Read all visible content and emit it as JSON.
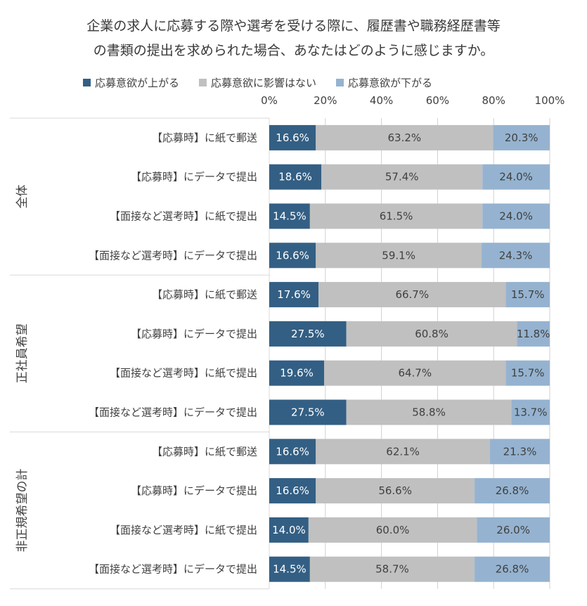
{
  "chart_data": {
    "type": "bar",
    "orientation": "horizontal",
    "stacked": true,
    "title_lines": [
      "企業の求人に応募する際や選考を受ける際に、履歴書や職務経歴書等",
      "の書類の提出を求められた場合、あなたはどのように感じますか。"
    ],
    "xlim": [
      0,
      100
    ],
    "x_ticks": [
      "0%",
      "20%",
      "40%",
      "60%",
      "80%",
      "100%"
    ],
    "legend_position": "top",
    "colors": {
      "up": "#335f84",
      "neutral": "#c0c0c0",
      "down": "#95b3d0",
      "grid": "#d0d0d0",
      "border": "#d9d9d9"
    },
    "series": [
      {
        "key": "up",
        "name": "応募意欲が上がる"
      },
      {
        "key": "neutral",
        "name": "応募意欲に影響はない"
      },
      {
        "key": "down",
        "name": "応募意欲が下がる"
      }
    ],
    "groups": [
      {
        "label": "全体",
        "rows": [
          {
            "label": "【応募時】に紙で郵送",
            "values": [
              16.6,
              63.2,
              20.3
            ],
            "labels": [
              "16.6%",
              "63.2%",
              "20.3%"
            ]
          },
          {
            "label": "【応募時】にデータで提出",
            "values": [
              18.6,
              57.4,
              24.0
            ],
            "labels": [
              "18.6%",
              "57.4%",
              "24.0%"
            ]
          },
          {
            "label": "【面接など選考時】に紙で提出",
            "values": [
              14.5,
              61.5,
              24.0
            ],
            "labels": [
              "14.5%",
              "61.5%",
              "24.0%"
            ]
          },
          {
            "label": "【面接など選考時】にデータで提出",
            "values": [
              16.6,
              59.1,
              24.3
            ],
            "labels": [
              "16.6%",
              "59.1%",
              "24.3%"
            ]
          }
        ]
      },
      {
        "label": "正社員希望",
        "rows": [
          {
            "label": "【応募時】に紙で郵送",
            "values": [
              17.6,
              66.7,
              15.7
            ],
            "labels": [
              "17.6%",
              "66.7%",
              "15.7%"
            ]
          },
          {
            "label": "【応募時】にデータで提出",
            "values": [
              27.5,
              60.8,
              11.8
            ],
            "labels": [
              "27.5%",
              "60.8%",
              "11.8%"
            ]
          },
          {
            "label": "【面接など選考時】に紙で提出",
            "values": [
              19.6,
              64.7,
              15.7
            ],
            "labels": [
              "19.6%",
              "64.7%",
              "15.7%"
            ]
          },
          {
            "label": "【面接など選考時】にデータで提出",
            "values": [
              27.5,
              58.8,
              13.7
            ],
            "labels": [
              "27.5%",
              "58.8%",
              "13.7%"
            ]
          }
        ]
      },
      {
        "label": "非正規希望の計",
        "rows": [
          {
            "label": "【応募時】に紙で郵送",
            "values": [
              16.6,
              62.1,
              21.3
            ],
            "labels": [
              "16.6%",
              "62.1%",
              "21.3%"
            ]
          },
          {
            "label": "【応募時】にデータで提出",
            "values": [
              16.6,
              56.6,
              26.8
            ],
            "labels": [
              "16.6%",
              "56.6%",
              "26.8%"
            ]
          },
          {
            "label": "【面接など選考時】に紙で提出",
            "values": [
              14.0,
              60.0,
              26.0
            ],
            "labels": [
              "14.0%",
              "60.0%",
              "26.0%"
            ]
          },
          {
            "label": "【面接など選考時】にデータで提出",
            "values": [
              14.5,
              58.7,
              26.8
            ],
            "labels": [
              "14.5%",
              "58.7%",
              "26.8%"
            ]
          }
        ]
      }
    ]
  }
}
